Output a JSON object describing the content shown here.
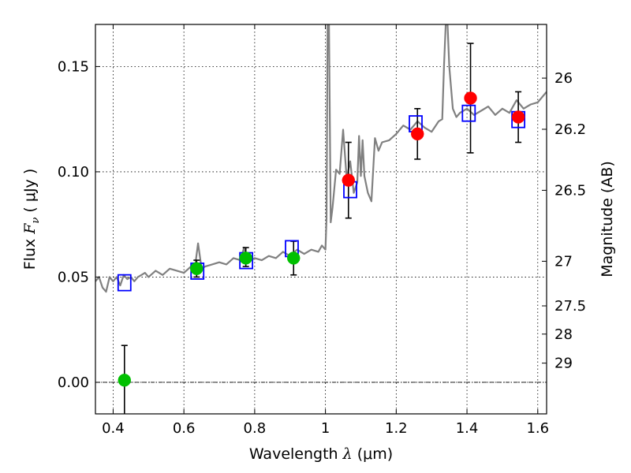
{
  "chart_data": {
    "type": "scatter",
    "title": "",
    "xlabel_prefix": "Wavelength  ",
    "xlabel_symbol": "λ",
    "xlabel_suffix": " (μm)",
    "ylabel_prefix": "Flux  ",
    "ylabel_symbol": "F",
    "ylabel_subscript": "ν",
    "ylabel_suffix": "  ( μJy )",
    "y2label": "Magnitude (AB)",
    "xlim": [
      0.35,
      1.625
    ],
    "ylim": [
      -0.015,
      0.17
    ],
    "grid": true,
    "x_ticks": [
      0.4,
      0.6,
      0.8,
      1.0,
      1.2,
      1.4,
      1.6
    ],
    "x_tick_labels": [
      "0.4",
      "0.6",
      "0.8",
      "1",
      "1.2",
      "1.4",
      "1.6"
    ],
    "y_ticks": [
      0.0,
      0.05,
      0.1,
      0.15
    ],
    "y_tick_labels": [
      "0.00",
      "0.05",
      "0.10",
      "0.15"
    ],
    "y2_ticks": [
      {
        "label": "26",
        "flux": 0.1445
      },
      {
        "label": "26.2",
        "flux": 0.1202
      },
      {
        "label": "26.5",
        "flux": 0.0912
      },
      {
        "label": "27",
        "flux": 0.0575
      },
      {
        "label": "27.5",
        "flux": 0.0363
      },
      {
        "label": "28",
        "flux": 0.0229
      },
      {
        "label": "29",
        "flux": 0.0091
      }
    ],
    "spectrum": {
      "color": "#808080",
      "x": [
        0.35,
        0.36,
        0.37,
        0.38,
        0.39,
        0.4,
        0.41,
        0.42,
        0.43,
        0.44,
        0.45,
        0.46,
        0.47,
        0.48,
        0.49,
        0.5,
        0.52,
        0.54,
        0.56,
        0.58,
        0.6,
        0.62,
        0.63,
        0.64,
        0.65,
        0.66,
        0.68,
        0.7,
        0.72,
        0.74,
        0.76,
        0.77,
        0.78,
        0.8,
        0.82,
        0.84,
        0.86,
        0.88,
        0.9,
        0.92,
        0.94,
        0.96,
        0.98,
        0.99,
        1.0,
        1.003,
        1.006,
        1.01,
        1.015,
        1.02,
        1.03,
        1.04,
        1.05,
        1.06,
        1.07,
        1.08,
        1.09,
        1.095,
        1.1,
        1.105,
        1.11,
        1.12,
        1.13,
        1.14,
        1.15,
        1.16,
        1.18,
        1.2,
        1.22,
        1.24,
        1.26,
        1.28,
        1.3,
        1.32,
        1.33,
        1.335,
        1.34,
        1.345,
        1.35,
        1.36,
        1.37,
        1.38,
        1.4,
        1.42,
        1.44,
        1.46,
        1.48,
        1.5,
        1.52,
        1.54,
        1.56,
        1.58,
        1.6,
        1.625
      ],
      "y": [
        0.048,
        0.05,
        0.045,
        0.043,
        0.05,
        0.048,
        0.05,
        0.046,
        0.051,
        0.049,
        0.05,
        0.048,
        0.05,
        0.051,
        0.052,
        0.05,
        0.053,
        0.051,
        0.054,
        0.053,
        0.052,
        0.055,
        0.053,
        0.066,
        0.054,
        0.055,
        0.056,
        0.057,
        0.056,
        0.059,
        0.058,
        0.064,
        0.057,
        0.059,
        0.058,
        0.06,
        0.059,
        0.062,
        0.06,
        0.063,
        0.061,
        0.063,
        0.062,
        0.065,
        0.063,
        0.078,
        0.17,
        0.17,
        0.076,
        0.083,
        0.101,
        0.099,
        0.12,
        0.097,
        0.105,
        0.09,
        0.095,
        0.117,
        0.098,
        0.115,
        0.098,
        0.09,
        0.086,
        0.116,
        0.11,
        0.114,
        0.115,
        0.118,
        0.122,
        0.12,
        0.124,
        0.121,
        0.119,
        0.124,
        0.125,
        0.15,
        0.17,
        0.17,
        0.15,
        0.13,
        0.126,
        0.128,
        0.13,
        0.127,
        0.129,
        0.131,
        0.127,
        0.13,
        0.128,
        0.134,
        0.13,
        0.132,
        0.133,
        0.138
      ]
    },
    "model_photometry": {
      "color": "#0000ff",
      "x": [
        0.432,
        0.638,
        0.776,
        0.905,
        1.07,
        1.255,
        1.405,
        1.545
      ],
      "y": [
        0.0473,
        0.0528,
        0.0578,
        0.0635,
        0.0915,
        0.1228,
        0.1278,
        0.1248
      ]
    },
    "optical_measurements": {
      "color": "#00c000",
      "x": [
        0.432,
        0.636,
        0.775,
        0.91
      ],
      "y": [
        0.001,
        0.054,
        0.059,
        0.059
      ],
      "err_low": [
        0.0165,
        0.004,
        0.004,
        0.008
      ],
      "err_high": [
        0.0165,
        0.004,
        0.005,
        0.008
      ]
    },
    "nir_measurements": {
      "color": "#ff0000",
      "x": [
        1.065,
        1.26,
        1.41,
        1.545
      ],
      "y": [
        0.096,
        0.118,
        0.135,
        0.126
      ],
      "err_low": [
        0.018,
        0.012,
        0.026,
        0.012
      ],
      "err_high": [
        0.018,
        0.012,
        0.026,
        0.012
      ]
    }
  }
}
